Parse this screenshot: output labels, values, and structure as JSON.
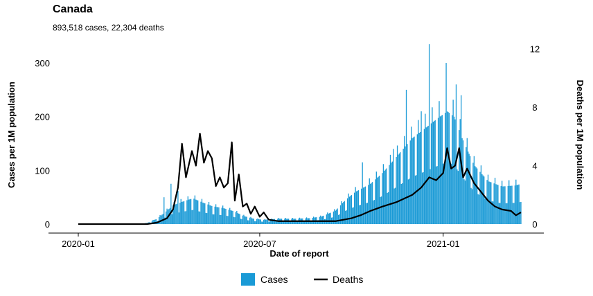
{
  "title": "Canada",
  "subtitle": "893,518 cases, 22,304 deaths",
  "chart_data": {
    "type": "bar",
    "x_start": "2020-01-01",
    "x_end": "2021-03-20",
    "xlabel": "Date of report",
    "ylabel_left": "Cases per 1M population",
    "ylabel_right": "Deaths per 1M population",
    "ylim_left": [
      0,
      340
    ],
    "ylim_right": [
      0,
      12.5
    ],
    "x_ticks": [
      {
        "date": "2020-01-01",
        "label": "2020-01"
      },
      {
        "date": "2020-07-01",
        "label": "2020-07"
      },
      {
        "date": "2021-01-01",
        "label": "2021-01"
      }
    ],
    "y_ticks_left": [
      0,
      100,
      200,
      300
    ],
    "y_ticks_right": [
      0,
      4,
      8,
      12
    ],
    "legend_position": "bottom",
    "series": [
      {
        "name": "Cases",
        "axis": "left",
        "color": "#1a9ad6",
        "points": [
          [
            "2020-03-01",
            0
          ],
          [
            "2020-03-10",
            2
          ],
          [
            "2020-03-20",
            10
          ],
          [
            "2020-03-30",
            25
          ],
          [
            "2020-04-05",
            35
          ],
          [
            "2020-04-15",
            42
          ],
          [
            "2020-04-25",
            48
          ],
          [
            "2020-05-05",
            40
          ],
          [
            "2020-05-15",
            33
          ],
          [
            "2020-05-25",
            30
          ],
          [
            "2020-06-05",
            24
          ],
          [
            "2020-06-15",
            15
          ],
          [
            "2020-06-25",
            10
          ],
          [
            "2020-07-05",
            8
          ],
          [
            "2020-07-20",
            10
          ],
          [
            "2020-08-05",
            10
          ],
          [
            "2020-08-20",
            11
          ],
          [
            "2020-09-01",
            14
          ],
          [
            "2020-09-15",
            25
          ],
          [
            "2020-09-25",
            45
          ],
          [
            "2020-10-05",
            60
          ],
          [
            "2020-10-20",
            75
          ],
          [
            "2020-11-01",
            95
          ],
          [
            "2020-11-15",
            125
          ],
          [
            "2020-12-01",
            160
          ],
          [
            "2020-12-15",
            180
          ],
          [
            "2020-12-25",
            195
          ],
          [
            "2021-01-05",
            210
          ],
          [
            "2021-01-12",
            200
          ],
          [
            "2021-01-20",
            160
          ],
          [
            "2021-02-01",
            110
          ],
          [
            "2021-02-15",
            80
          ],
          [
            "2021-03-01",
            70
          ],
          [
            "2021-03-15",
            72
          ],
          [
            "2021-03-20",
            75
          ]
        ],
        "spikes": [
          [
            "2020-03-27",
            50
          ],
          [
            "2020-04-03",
            75
          ],
          [
            "2020-04-10",
            62
          ],
          [
            "2020-10-12",
            115
          ],
          [
            "2020-11-12",
            140
          ],
          [
            "2020-11-25",
            250
          ],
          [
            "2020-12-10",
            210
          ],
          [
            "2020-12-18",
            335
          ],
          [
            "2021-01-04",
            300
          ],
          [
            "2021-01-14",
            260
          ],
          [
            "2021-01-19",
            240
          ]
        ]
      },
      {
        "name": "Deaths",
        "axis": "right",
        "color": "#000000",
        "points": [
          [
            "2020-01-01",
            0
          ],
          [
            "2020-03-10",
            0
          ],
          [
            "2020-03-20",
            0.1
          ],
          [
            "2020-03-30",
            0.4
          ],
          [
            "2020-04-05",
            1.0
          ],
          [
            "2020-04-10",
            2.5
          ],
          [
            "2020-04-14",
            5.5
          ],
          [
            "2020-04-18",
            3.2
          ],
          [
            "2020-04-24",
            5.0
          ],
          [
            "2020-04-28",
            4.0
          ],
          [
            "2020-05-02",
            6.2
          ],
          [
            "2020-05-06",
            4.2
          ],
          [
            "2020-05-10",
            5.0
          ],
          [
            "2020-05-14",
            4.5
          ],
          [
            "2020-05-18",
            2.6
          ],
          [
            "2020-05-22",
            3.2
          ],
          [
            "2020-05-26",
            2.5
          ],
          [
            "2020-05-30",
            2.8
          ],
          [
            "2020-06-03",
            5.6
          ],
          [
            "2020-06-06",
            1.6
          ],
          [
            "2020-06-10",
            3.4
          ],
          [
            "2020-06-14",
            1.2
          ],
          [
            "2020-06-18",
            1.4
          ],
          [
            "2020-06-22",
            0.7
          ],
          [
            "2020-06-26",
            1.2
          ],
          [
            "2020-07-01",
            0.5
          ],
          [
            "2020-07-05",
            0.8
          ],
          [
            "2020-07-10",
            0.3
          ],
          [
            "2020-07-20",
            0.2
          ],
          [
            "2020-08-01",
            0.2
          ],
          [
            "2020-08-15",
            0.2
          ],
          [
            "2020-09-01",
            0.2
          ],
          [
            "2020-09-15",
            0.2
          ],
          [
            "2020-10-01",
            0.4
          ],
          [
            "2020-10-10",
            0.6
          ],
          [
            "2020-10-20",
            0.9
          ],
          [
            "2020-11-01",
            1.2
          ],
          [
            "2020-11-15",
            1.5
          ],
          [
            "2020-12-01",
            2.0
          ],
          [
            "2020-12-10",
            2.5
          ],
          [
            "2020-12-18",
            3.2
          ],
          [
            "2020-12-25",
            3.0
          ],
          [
            "2021-01-01",
            3.5
          ],
          [
            "2021-01-05",
            5.2
          ],
          [
            "2021-01-09",
            3.8
          ],
          [
            "2021-01-13",
            4.0
          ],
          [
            "2021-01-17",
            5.2
          ],
          [
            "2021-01-21",
            3.2
          ],
          [
            "2021-01-25",
            3.8
          ],
          [
            "2021-02-01",
            2.8
          ],
          [
            "2021-02-08",
            2.2
          ],
          [
            "2021-02-15",
            1.6
          ],
          [
            "2021-02-22",
            1.2
          ],
          [
            "2021-03-01",
            1.0
          ],
          [
            "2021-03-10",
            0.9
          ],
          [
            "2021-03-15",
            0.6
          ],
          [
            "2021-03-20",
            0.8
          ]
        ]
      }
    ]
  }
}
